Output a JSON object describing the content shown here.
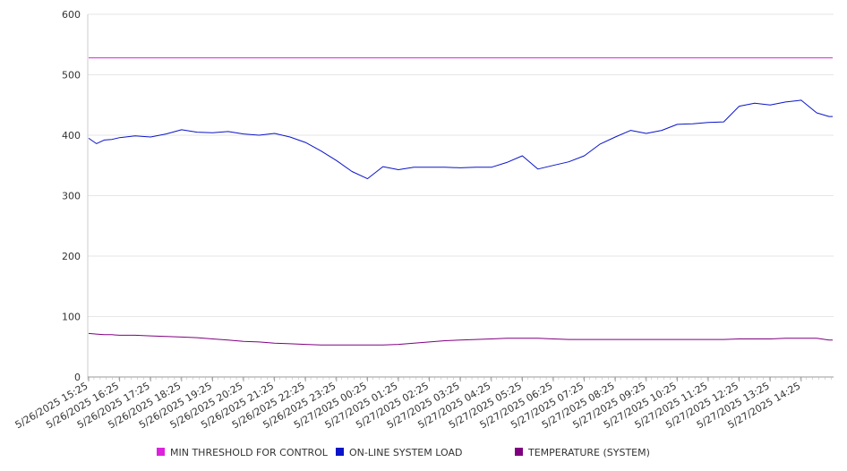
{
  "chart_data": {
    "type": "line",
    "title": "",
    "xlabel": "",
    "ylabel": "",
    "ylim": [
      0,
      600
    ],
    "yticks": [
      "0",
      "100",
      "200",
      "300",
      "400",
      "500",
      "600"
    ],
    "grid": "horizontal",
    "legend_position": "bottom",
    "x_tick_labels": [
      "5/26/2025 15:25",
      "5/26/2025 16:25",
      "5/26/2025 17:25",
      "5/26/2025 18:25",
      "5/26/2025 19:25",
      "5/26/2025 20:25",
      "5/26/2025 21:25",
      "5/26/2025 22:25",
      "5/26/2025 23:25",
      "5/27/2025 00:25",
      "5/27/2025 01:25",
      "5/27/2025 02:25",
      "5/27/2025 03:25",
      "5/27/2025 04:25",
      "5/27/2025 05:25",
      "5/27/2025 06:25",
      "5/27/2025 07:25",
      "5/27/2025 08:25",
      "5/27/2025 09:25",
      "5/27/2025 10:25",
      "5/27/2025 11:25",
      "5/27/2025 12:25",
      "5/27/2025 13:25",
      "5/27/2025 14:25"
    ],
    "x_hours": [
      0,
      0.25,
      0.5,
      0.75,
      1,
      1.5,
      2,
      2.5,
      3,
      3.5,
      4,
      4.5,
      5,
      5.5,
      6,
      6.5,
      7,
      7.5,
      8,
      8.5,
      9,
      9.5,
      10,
      10.5,
      11,
      11.5,
      12,
      12.5,
      13,
      13.5,
      14,
      14.5,
      15,
      15.5,
      16,
      16.5,
      17,
      17.5,
      18,
      18.5,
      19,
      19.5,
      20,
      20.5,
      21,
      21.5,
      22,
      22.5,
      23,
      23.5,
      23.9
    ],
    "series": [
      {
        "name": "MIN THRESHOLD FOR CONTROL",
        "color": "#dd22dd",
        "values": [
          528,
          528,
          528,
          528,
          528,
          528,
          528,
          528,
          528,
          528,
          528,
          528,
          528,
          528,
          528,
          528,
          528,
          528,
          528,
          528,
          528,
          528,
          528,
          528,
          528,
          528,
          528,
          528,
          528,
          528,
          528,
          528,
          528,
          528,
          528,
          528,
          528,
          528,
          528,
          528,
          528,
          528,
          528,
          528,
          528,
          528,
          528,
          528,
          528,
          528,
          528
        ]
      },
      {
        "name": "ON-LINE SYSTEM LOAD",
        "color": "#0a14c8",
        "values": [
          395,
          386,
          392,
          393,
          396,
          399,
          397,
          402,
          409,
          405,
          404,
          406,
          402,
          400,
          403,
          397,
          388,
          374,
          358,
          340,
          328,
          348,
          343,
          347,
          347,
          347,
          346,
          347,
          347,
          355,
          366,
          344,
          350,
          356,
          366,
          385,
          397,
          408,
          403,
          408,
          418,
          419,
          421,
          422,
          448,
          453,
          450,
          455,
          458,
          437,
          431
        ]
      },
      {
        "name": "TEMPERATURE (SYSTEM)",
        "color": "#800080",
        "values": [
          72,
          71,
          70,
          70,
          69,
          69,
          68,
          67,
          66,
          65,
          63,
          61,
          59,
          58,
          56,
          55,
          54,
          53,
          53,
          53,
          53,
          53,
          54,
          56,
          58,
          60,
          61,
          62,
          63,
          64,
          64,
          64,
          63,
          62,
          62,
          62,
          62,
          62,
          62,
          62,
          62,
          62,
          62,
          62,
          63,
          63,
          63,
          64,
          64,
          64,
          61
        ]
      }
    ]
  }
}
